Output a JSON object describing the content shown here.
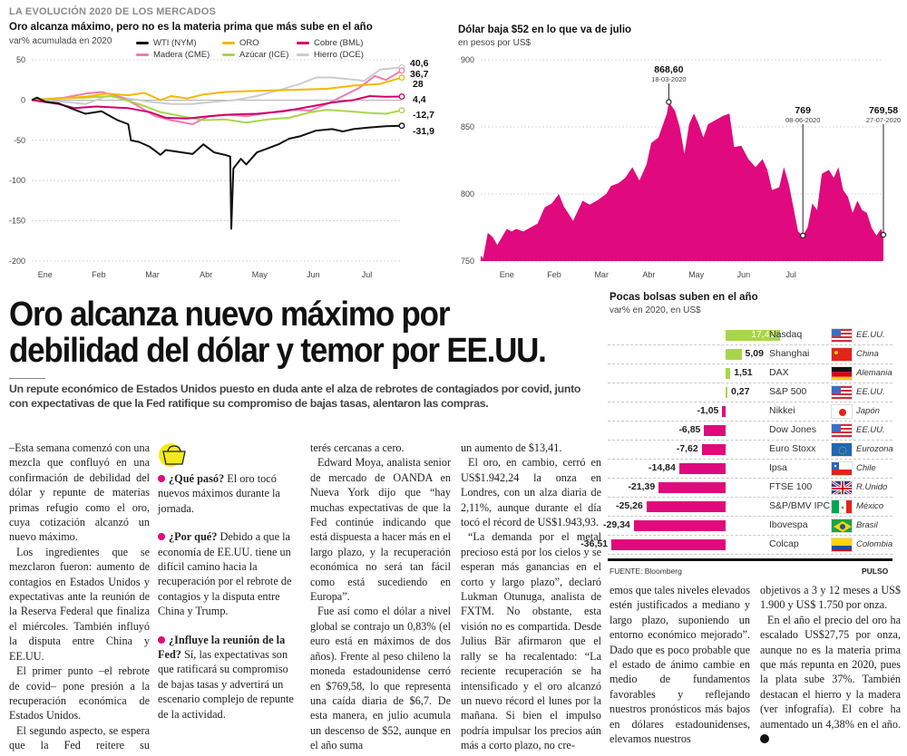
{
  "section_kicker": "LA EVOLUCIÓN 2020 DE LOS MERCADOS",
  "colors": {
    "magenta": "#e0097d",
    "bar_positive": "#a8d64a",
    "bar_negative": "#e0097d",
    "kicker_gray": "#8a8a8a",
    "wti": "#111111",
    "oro": "#f5b800",
    "cobre": "#d0006f",
    "madera": "#f07ab0",
    "azucar": "#a8d64a",
    "hierro": "#cccccc"
  },
  "chart_data": [
    {
      "type": "line",
      "title": "Oro alcanza máximo, pero no es la materia prima que más sube en el año",
      "subtitle": "var% acumulada en 2020",
      "xlabel": "",
      "ylabel": "",
      "ylim": [
        -200,
        50
      ],
      "yticks": [
        50,
        0,
        -50,
        -100,
        -150,
        -200
      ],
      "x_tick_labels": [
        "Ene",
        "Feb",
        "Mar",
        "Abr",
        "May",
        "Jun",
        "Jul"
      ],
      "grid": true,
      "legend_position": "top",
      "x_index_note": "x = approximate month position (0 = start of Jan, 6.5 = late Jul)",
      "series": [
        {
          "name": "WTI (NYM)",
          "color": "#111111",
          "end_label": "-31,9",
          "points": [
            [
              0,
              0
            ],
            [
              0.1,
              3
            ],
            [
              0.25,
              -2
            ],
            [
              0.5,
              -4
            ],
            [
              0.8,
              -12
            ],
            [
              1.0,
              -17
            ],
            [
              1.3,
              -14
            ],
            [
              1.6,
              -25
            ],
            [
              1.8,
              -30
            ],
            [
              1.85,
              -50
            ],
            [
              2.0,
              -52
            ],
            [
              2.2,
              -58
            ],
            [
              2.4,
              -68
            ],
            [
              2.5,
              -62
            ],
            [
              2.8,
              -65
            ],
            [
              3.0,
              -67
            ],
            [
              3.2,
              -55
            ],
            [
              3.4,
              -65
            ],
            [
              3.6,
              -68
            ],
            [
              3.7,
              -70
            ],
            [
              3.72,
              -160
            ],
            [
              3.76,
              -85
            ],
            [
              3.9,
              -73
            ],
            [
              4.0,
              -80
            ],
            [
              4.2,
              -65
            ],
            [
              4.4,
              -60
            ],
            [
              4.6,
              -55
            ],
            [
              4.8,
              -48
            ],
            [
              5.0,
              -45
            ],
            [
              5.3,
              -38
            ],
            [
              5.6,
              -36
            ],
            [
              5.8,
              -39
            ],
            [
              6.0,
              -36
            ],
            [
              6.3,
              -34
            ],
            [
              6.6,
              -32.5
            ],
            [
              6.9,
              -31.9
            ]
          ]
        },
        {
          "name": "ORO",
          "color": "#f5b800",
          "end_label": "28",
          "points": [
            [
              0,
              0
            ],
            [
              0.5,
              2
            ],
            [
              1.0,
              4
            ],
            [
              1.4,
              8
            ],
            [
              1.8,
              6
            ],
            [
              2.1,
              9
            ],
            [
              2.4,
              0
            ],
            [
              2.6,
              5
            ],
            [
              2.9,
              2
            ],
            [
              3.2,
              7
            ],
            [
              3.6,
              10
            ],
            [
              4.0,
              11
            ],
            [
              4.5,
              12
            ],
            [
              5.0,
              13
            ],
            [
              5.5,
              14
            ],
            [
              6.0,
              18
            ],
            [
              6.5,
              20
            ],
            [
              6.9,
              28
            ]
          ]
        },
        {
          "name": "Cobre (BML)",
          "color": "#d0006f",
          "end_label": "4,4",
          "points": [
            [
              0,
              0
            ],
            [
              0.5,
              -5
            ],
            [
              0.8,
              -10
            ],
            [
              1.2,
              -8
            ],
            [
              1.8,
              -10
            ],
            [
              2.2,
              -15
            ],
            [
              2.5,
              -22
            ],
            [
              2.9,
              -23
            ],
            [
              3.3,
              -20
            ],
            [
              3.7,
              -18
            ],
            [
              4.2,
              -17
            ],
            [
              4.7,
              -14
            ],
            [
              5.2,
              -8
            ],
            [
              5.6,
              -3
            ],
            [
              6.0,
              0
            ],
            [
              6.3,
              5
            ],
            [
              6.6,
              4
            ],
            [
              6.9,
              4.4
            ]
          ]
        },
        {
          "name": "Madera (CME)",
          "color": "#f07ab0",
          "end_label": "36,7",
          "points": [
            [
              0,
              0
            ],
            [
              0.6,
              3
            ],
            [
              1.0,
              8
            ],
            [
              1.3,
              10
            ],
            [
              1.7,
              3
            ],
            [
              2.0,
              -8
            ],
            [
              2.3,
              -20
            ],
            [
              2.6,
              -25
            ],
            [
              3.0,
              -30
            ],
            [
              3.3,
              -20
            ],
            [
              3.6,
              -18
            ],
            [
              4.0,
              -20
            ],
            [
              4.4,
              -16
            ],
            [
              4.8,
              -12
            ],
            [
              5.2,
              -13
            ],
            [
              5.5,
              -5
            ],
            [
              5.8,
              5
            ],
            [
              6.1,
              15
            ],
            [
              6.4,
              30
            ],
            [
              6.6,
              25
            ],
            [
              6.9,
              36.7
            ]
          ]
        },
        {
          "name": "Azúcar (ICE)",
          "color": "#a8d64a",
          "end_label": "-12,7",
          "points": [
            [
              0,
              0
            ],
            [
              0.5,
              2
            ],
            [
              1.0,
              3
            ],
            [
              1.5,
              5
            ],
            [
              2.0,
              -5
            ],
            [
              2.4,
              -15
            ],
            [
              2.8,
              -20
            ],
            [
              3.2,
              -25
            ],
            [
              3.6,
              -24
            ],
            [
              4.0,
              -28
            ],
            [
              4.4,
              -24
            ],
            [
              4.8,
              -22
            ],
            [
              5.2,
              -15
            ],
            [
              5.5,
              -12
            ],
            [
              5.9,
              -14
            ],
            [
              6.3,
              -16
            ],
            [
              6.6,
              -17
            ],
            [
              6.9,
              -12.7
            ]
          ]
        },
        {
          "name": "Hierro (DCE)",
          "color": "#cccccc",
          "end_label": "40,6",
          "points": [
            [
              0,
              0
            ],
            [
              0.6,
              -2
            ],
            [
              1.0,
              -5
            ],
            [
              1.4,
              5
            ],
            [
              1.8,
              2
            ],
            [
              2.2,
              -2
            ],
            [
              2.6,
              -5
            ],
            [
              3.0,
              -5
            ],
            [
              3.4,
              -2
            ],
            [
              3.8,
              0
            ],
            [
              4.2,
              5
            ],
            [
              4.6,
              12
            ],
            [
              5.0,
              20
            ],
            [
              5.3,
              28
            ],
            [
              5.6,
              28
            ],
            [
              5.9,
              26
            ],
            [
              6.2,
              24
            ],
            [
              6.5,
              38
            ],
            [
              6.9,
              40.6
            ]
          ]
        }
      ]
    },
    {
      "type": "area",
      "title": "Dólar baja $52 en lo que va de julio",
      "subtitle": "en pesos por US$",
      "xlabel": "",
      "ylabel": "",
      "ylim": [
        750,
        900
      ],
      "yticks": [
        900,
        850,
        800,
        750
      ],
      "x_tick_labels": [
        "Ene",
        "Feb",
        "Mar",
        "Abr",
        "May",
        "Jun",
        "Jul"
      ],
      "grid": true,
      "color": "#e0097d",
      "x_index_note": "x = approximate month position (0 = start of Jan)",
      "points": [
        [
          -0.75,
          754
        ],
        [
          -0.7,
          752
        ],
        [
          -0.6,
          771
        ],
        [
          -0.5,
          768
        ],
        [
          -0.4,
          762
        ],
        [
          -0.3,
          768
        ],
        [
          -0.2,
          774
        ],
        [
          -0.1,
          772
        ],
        [
          0,
          774
        ],
        [
          0.15,
          772
        ],
        [
          0.3,
          775
        ],
        [
          0.45,
          778
        ],
        [
          0.6,
          790
        ],
        [
          0.75,
          793
        ],
        [
          0.9,
          800
        ],
        [
          1.0,
          791
        ],
        [
          1.2,
          780
        ],
        [
          1.4,
          795
        ],
        [
          1.55,
          792
        ],
        [
          1.7,
          795
        ],
        [
          1.9,
          800
        ],
        [
          2.0,
          806
        ],
        [
          2.15,
          808
        ],
        [
          2.3,
          812
        ],
        [
          2.45,
          820
        ],
        [
          2.6,
          810
        ],
        [
          2.75,
          822
        ],
        [
          2.85,
          838
        ],
        [
          3.0,
          842
        ],
        [
          3.1,
          852
        ],
        [
          3.18,
          860
        ],
        [
          3.22,
          868.6
        ],
        [
          3.35,
          862
        ],
        [
          3.45,
          850
        ],
        [
          3.55,
          830
        ],
        [
          3.65,
          852
        ],
        [
          3.75,
          860
        ],
        [
          3.85,
          852
        ],
        [
          3.95,
          842
        ],
        [
          4.05,
          852
        ],
        [
          4.2,
          855
        ],
        [
          4.35,
          858
        ],
        [
          4.5,
          860
        ],
        [
          4.6,
          835
        ],
        [
          4.75,
          836
        ],
        [
          4.9,
          826
        ],
        [
          5.05,
          820
        ],
        [
          5.2,
          826
        ],
        [
          5.3,
          818
        ],
        [
          5.4,
          803
        ],
        [
          5.55,
          805
        ],
        [
          5.65,
          820
        ],
        [
          5.75,
          808
        ],
        [
          5.85,
          790
        ],
        [
          5.95,
          772
        ],
        [
          6.05,
          769
        ],
        [
          6.15,
          775
        ],
        [
          6.25,
          793
        ],
        [
          6.35,
          788
        ],
        [
          6.45,
          815
        ],
        [
          6.6,
          818
        ],
        [
          6.7,
          812
        ],
        [
          6.8,
          820
        ],
        [
          6.9,
          803
        ],
        [
          7.0,
          798
        ],
        [
          7.1,
          786
        ],
        [
          7.2,
          795
        ],
        [
          7.3,
          788
        ],
        [
          7.4,
          786
        ],
        [
          7.5,
          775
        ],
        [
          7.6,
          769
        ],
        [
          7.7,
          774
        ],
        [
          7.75,
          769.58
        ]
      ],
      "annotations": [
        {
          "value": "868,60",
          "date": "18-03-2020"
        },
        {
          "value": "769",
          "date": "08-06-2020"
        },
        {
          "value": "769,58",
          "date": "27-07-2020"
        }
      ]
    },
    {
      "type": "bar",
      "title": "Pocas bolsas suben en el año",
      "subtitle": "var% en 2020, en US$",
      "orientation": "horizontal",
      "categories": [
        "Nasdaq",
        "Shanghai",
        "DAX",
        "S&P 500",
        "Nikkei",
        "Dow Jones",
        "Euro Stoxx",
        "Ipsa",
        "FTSE 100",
        "S&P/BMV IPC",
        "Ibovespa",
        "Colcap"
      ],
      "values": [
        17.43,
        5.09,
        1.51,
        0.27,
        -1.05,
        -6.85,
        -7.62,
        -14.84,
        -21.39,
        -25.26,
        -29.34,
        -36.51
      ],
      "value_labels": [
        "17,43",
        "5,09",
        "1,51",
        "0,27",
        "-1,05",
        "-6,85",
        "-7,62",
        "-14,84",
        "-21,39",
        "-25,26",
        "-29,34",
        "-36,51"
      ],
      "countries": [
        "EE.UU.",
        "China",
        "Alemania",
        "EE.UU.",
        "Japón",
        "EE.UU.",
        "Eurozona",
        "Chile",
        "R.Unido",
        "México",
        "Brasil",
        "Colombia"
      ],
      "flags": [
        "usa-flag-icon",
        "china-flag-icon",
        "germany-flag-icon",
        "usa-flag-icon",
        "japan-flag-icon",
        "usa-flag-icon",
        "eu-flag-icon",
        "chile-flag-icon",
        "uk-flag-icon",
        "mexico-flag-icon",
        "brazil-flag-icon",
        "colombia-flag-icon"
      ],
      "xlabel": "",
      "ylabel": "",
      "source": "FUENTE: Bloomberg",
      "brand": "PULSO"
    }
  ],
  "article": {
    "headline": "Oro alcanza nuevo máximo por debilidad del dólar y temor por EE.UU.",
    "dek": "Un repute económico de Estados Unidos puesto en duda ante el alza de rebrotes de contagiados por covid, junto con expectativas de que la Fed ratifique su compromiso de bajas tasas, alentaron las compras.",
    "col1": [
      "–Esta semana comenzó con una mezcla que confluyó en una confirmación de debilidad del dólar y repunte de materias primas refugio como el oro, cuya cotización alcanzó un nuevo máximo.",
      "Los ingredientes que se mezclaron fueron: aumento de contagios en Estados Unidos y expectativas ante la reunión de la Reserva Federal que finaliza el miércoles. También influyó la disputa entre China y EE.UU.",
      "El primer punto –el rebrote de covid– pone presión a la recuperación económica de Estados Unidos.",
      "El segundo aspecto, se espera que la Fed reitere su compromiso con las tasas de in-"
    ],
    "box": [
      {
        "q": "¿Qué pasó?",
        "a": " El oro tocó nuevos máximos durante la jornada."
      },
      {
        "q": "¿Por qué?",
        "a": " Debido a que la economía de EE.UU. tiene un difícil camino hacia la recuperación por el rebrote de contagios y la disputa entre China y Trump."
      },
      {
        "q": "¿Influye la reunión de la Fed?",
        "a": " Sí, las expectativas son que ratificará su compromiso de bajas tasas y advertirá un escenario complejo de repunte de la actividad."
      }
    ],
    "col3": [
      "terés cercanas a cero.",
      "Edward Moya, analista senior de mercado de OANDA en Nueva York dijo que “hay muchas expectativas de que la Fed continúe indicando que está dispuesta a hacer más en el largo plazo, y la recuperación económica no será tan fácil como está sucediendo en Europa”.",
      "Fue así como el dólar a nivel global se contrajo un 0,83% (el euro está en máximos de dos años). Frente al peso chileno la moneda estadounidense cerró en $769,58, lo que representa una caída diaria de $6,7. De esta manera, en julio acumula un descenso de $52, aunque en el año suma"
    ],
    "col4": [
      "un aumento de $13,41.",
      "El oro, en cambio, cerró en US$1.942,24 la onza en Londres, con un alza diaria de 2,11%, aunque durante el día tocó el récord de US$1.943,93.",
      "“La demanda por el metal precioso está por los cielos y se esperan más ganancias en el corto y largo plazo”, declaró Lukman Otunuga, analista de FXTM. No obstante, esta visión no es compartida. Desde Julius Bär afirmaron que el rally se ha recalentado: “La reciente recuperación se ha intensificado y el oro alcanzó un nuevo récord el lunes por la mañana. Si bien el impulso podría impulsar los precios aún más a corto plazo, no cre-"
    ],
    "col5": [
      "emos que tales niveles elevados estén justificados a mediano y largo plazo, suponiendo un entorno económico mejorado”. Dado que es poco probable que el estado de ánimo cambie en medio de fundamentos favorables y reflejando nuestros pronósticos más bajos en dólares estadounidenses, elevamos nuestros"
    ],
    "col6": [
      "objetivos a 3 y 12 meses a US$ 1.900 y US$ 1.750 por onza.",
      "En el año el precio del oro ha escalado US$27,75 por onza, aunque no es la materia prima que más repunta en 2020, pues la plata sube 37%. También destacan el hierro y la madera (ver infografía). El cobre ha aumentado un 4,38% en el año."
    ],
    "box_icon": "shopping-basket-icon",
    "end_mark_icon": "pulso-end-mark-icon"
  }
}
